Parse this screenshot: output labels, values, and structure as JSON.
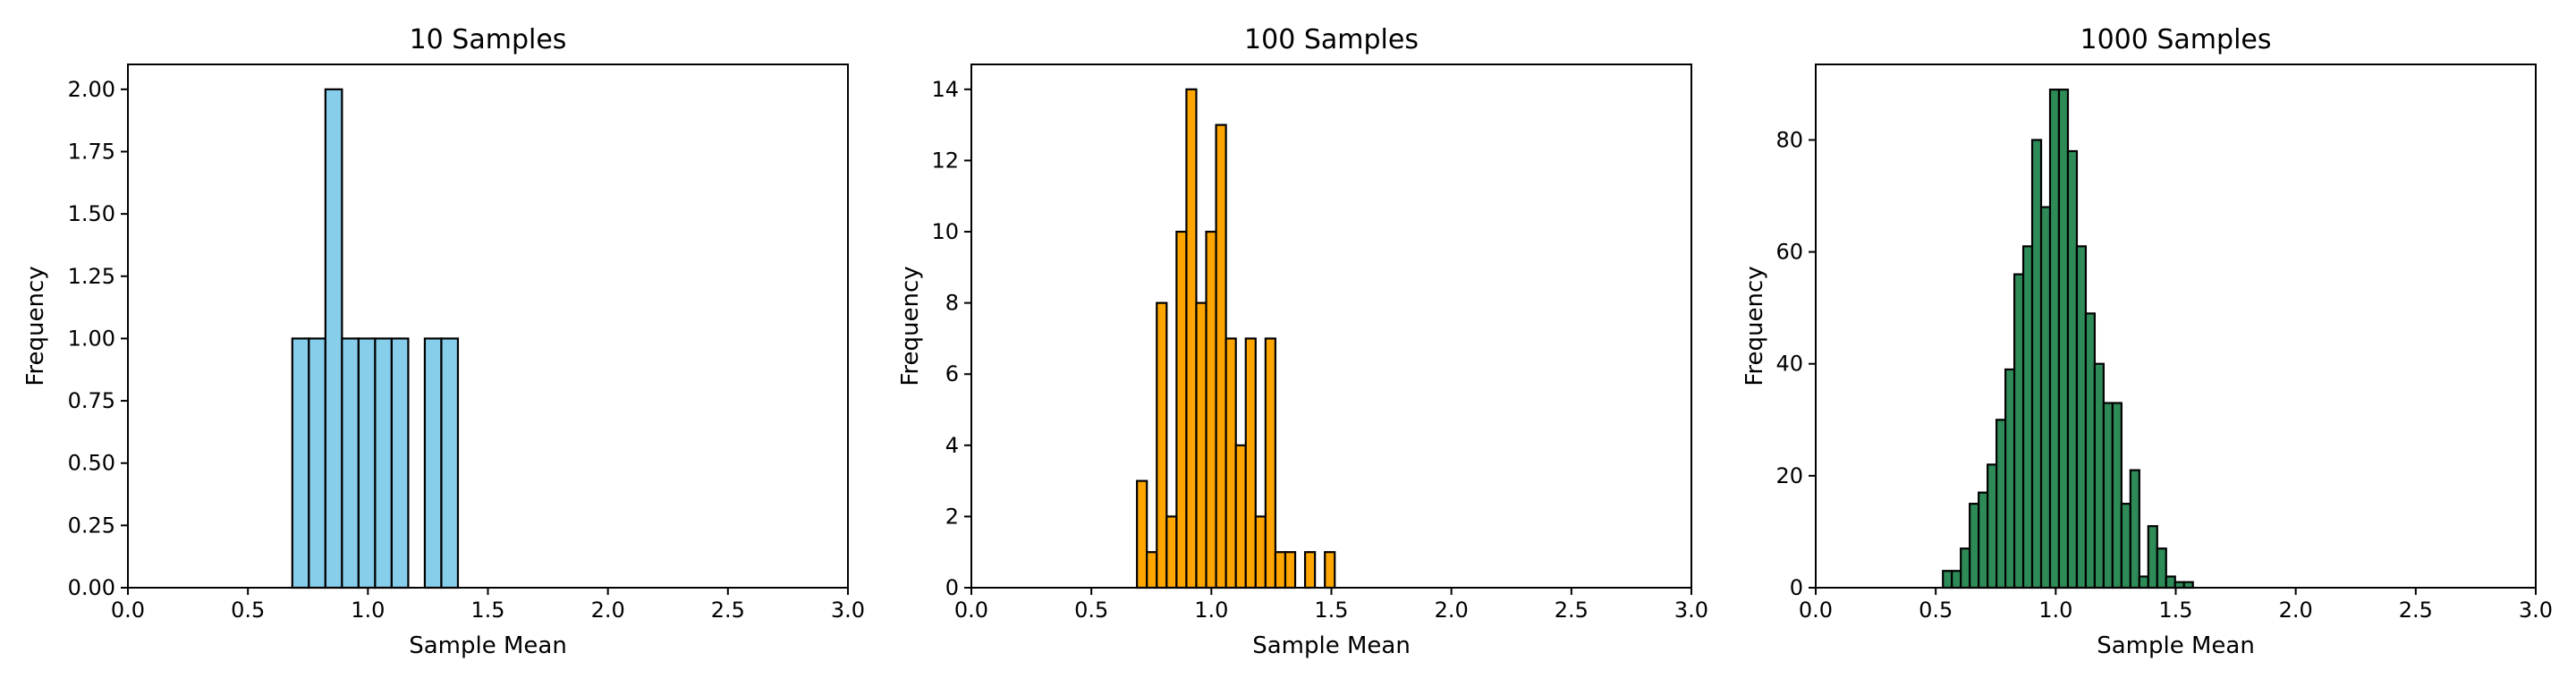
{
  "chart_data": [
    {
      "type": "bar",
      "title": "10 Samples",
      "xlabel": "Sample Mean",
      "ylabel": "Frequency",
      "xlim": [
        0.0,
        3.0
      ],
      "ylim": [
        0.0,
        2.1
      ],
      "xticks": [
        "0.0",
        "0.5",
        "1.0",
        "1.5",
        "2.0",
        "2.5",
        "3.0"
      ],
      "yticks": [
        "0.00",
        "0.25",
        "0.50",
        "0.75",
        "1.00",
        "1.25",
        "1.50",
        "1.75",
        "2.00"
      ],
      "color": "#87CEEB",
      "edgecolor": "#000000",
      "grid": false,
      "bins": [
        {
          "x0": 0.685,
          "x1": 0.754,
          "count": 1
        },
        {
          "x0": 0.754,
          "x1": 0.823,
          "count": 1
        },
        {
          "x0": 0.823,
          "x1": 0.892,
          "count": 2
        },
        {
          "x0": 0.892,
          "x1": 0.961,
          "count": 1
        },
        {
          "x0": 0.961,
          "x1": 1.03,
          "count": 1
        },
        {
          "x0": 1.03,
          "x1": 1.099,
          "count": 1
        },
        {
          "x0": 1.099,
          "x1": 1.168,
          "count": 1
        },
        {
          "x0": 1.168,
          "x1": 1.237,
          "count": 0
        },
        {
          "x0": 1.237,
          "x1": 1.306,
          "count": 1
        },
        {
          "x0": 1.306,
          "x1": 1.375,
          "count": 1
        }
      ]
    },
    {
      "type": "bar",
      "title": "100 Samples",
      "xlabel": "Sample Mean",
      "ylabel": "Frequency",
      "xlim": [
        0.0,
        3.0
      ],
      "ylim": [
        0.0,
        14.7
      ],
      "xticks": [
        "0.0",
        "0.5",
        "1.0",
        "1.5",
        "2.0",
        "2.5",
        "3.0"
      ],
      "yticks": [
        "0",
        "2",
        "4",
        "6",
        "8",
        "10",
        "12",
        "14"
      ],
      "color": "#FFA500",
      "edgecolor": "#000000",
      "grid": false,
      "bin_start": 0.69,
      "bin_width": 0.0412,
      "counts": [
        3,
        1,
        8,
        2,
        10,
        14,
        8,
        10,
        13,
        7,
        4,
        7,
        2,
        7,
        1,
        1,
        0,
        1,
        0,
        1
      ]
    },
    {
      "type": "bar",
      "title": "1000 Samples",
      "xlabel": "Sample Mean",
      "ylabel": "Frequency",
      "xlim": [
        0.0,
        3.0
      ],
      "ylim": [
        0.0,
        93.5
      ],
      "xticks": [
        "0.0",
        "0.5",
        "1.0",
        "1.5",
        "2.0",
        "2.5",
        "3.0"
      ],
      "yticks": [
        "0",
        "20",
        "40",
        "60",
        "80"
      ],
      "color": "#2E8B57",
      "edgecolor": "#000000",
      "grid": false,
      "bin_start": 0.53,
      "bin_width": 0.0372,
      "counts": [
        3,
        3,
        7,
        15,
        17,
        22,
        30,
        39,
        56,
        61,
        80,
        68,
        89,
        89,
        78,
        61,
        49,
        40,
        33,
        33,
        15,
        21,
        2,
        11,
        7,
        2,
        1,
        1
      ]
    }
  ]
}
